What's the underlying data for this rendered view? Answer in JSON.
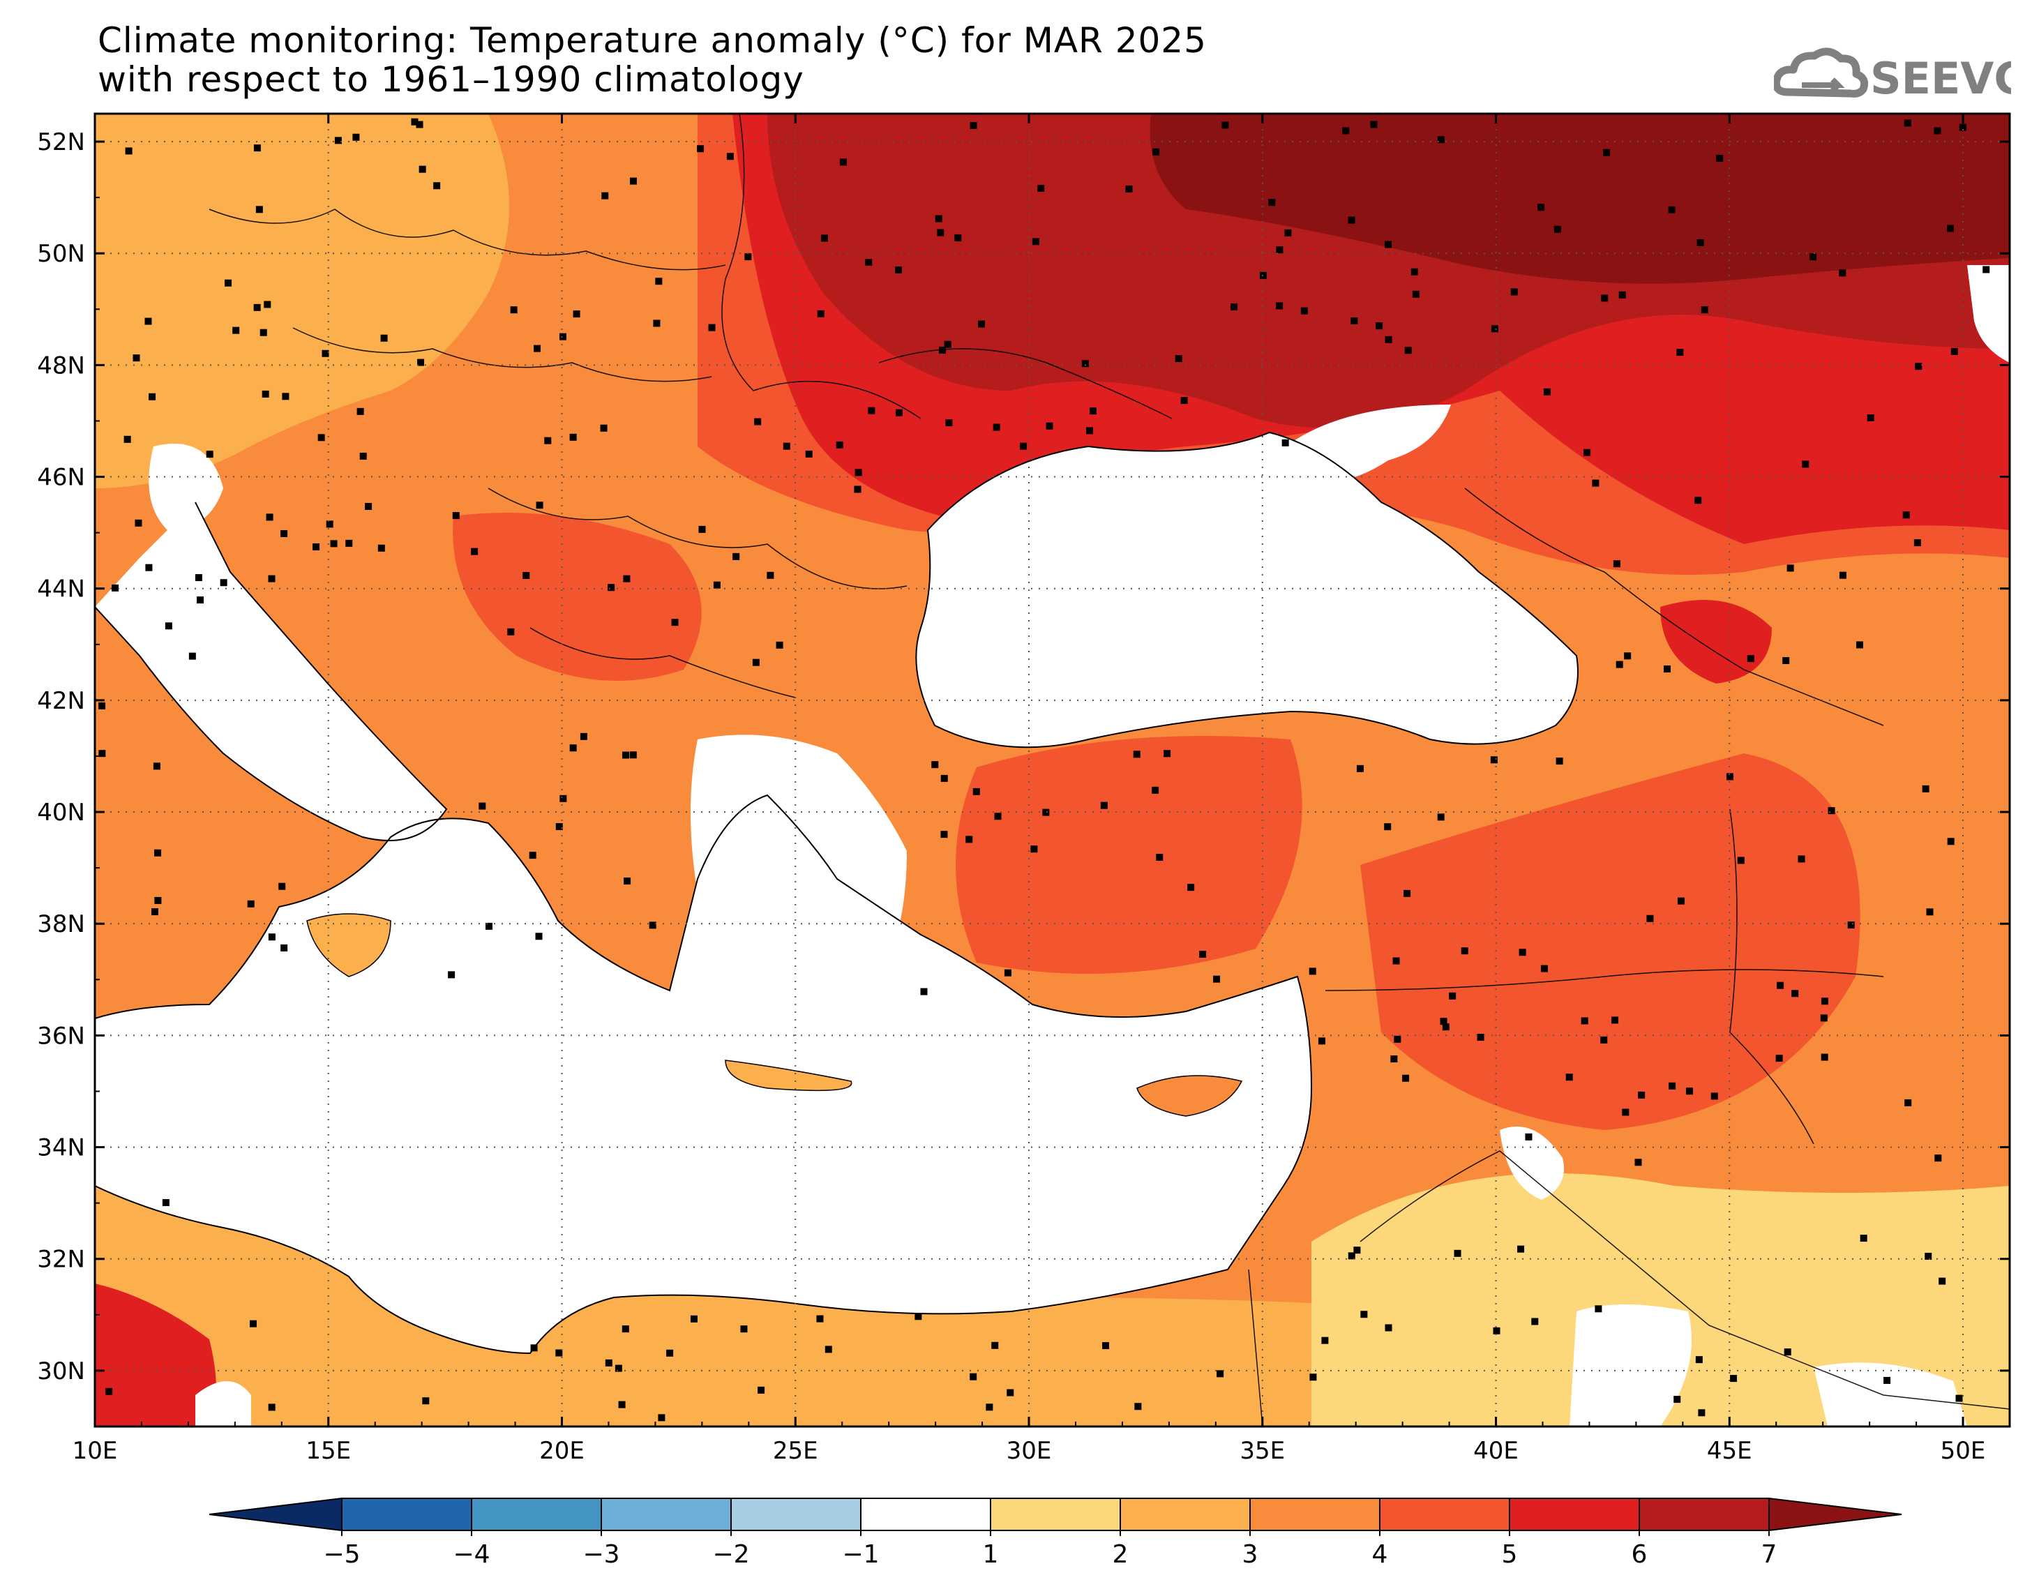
{
  "header": {
    "title_line1": "Climate monitoring: Temperature anomaly (°C) for MAR 2025",
    "title_line2": "with respect to 1961–1990 climatology"
  },
  "logo": {
    "text": "SEEVCCC",
    "icon": "cloud-icon",
    "color": "#808080"
  },
  "map": {
    "lon_range": [
      10,
      51
    ],
    "lat_range": [
      29,
      52.5
    ],
    "lon_ticks": [
      10,
      15,
      20,
      25,
      30,
      35,
      40,
      45,
      50
    ],
    "lon_tick_labels": [
      "10E",
      "15E",
      "20E",
      "25E",
      "30E",
      "35E",
      "40E",
      "45E",
      "50E"
    ],
    "lat_ticks": [
      30,
      32,
      34,
      36,
      38,
      40,
      42,
      44,
      46,
      48,
      50,
      52
    ],
    "lat_tick_labels": [
      "30N",
      "32N",
      "34N",
      "36N",
      "38N",
      "40N",
      "42N",
      "44N",
      "46N",
      "48N",
      "50N",
      "52N"
    ],
    "grid": "dotted",
    "stations_marker": "black-square"
  },
  "colorbar": {
    "boundaries": [
      -5,
      -4,
      -3,
      -2,
      -1,
      1,
      2,
      3,
      4,
      5,
      6,
      7
    ],
    "labels": [
      "−5",
      "−4",
      "−3",
      "−2",
      "−1",
      "1",
      "2",
      "3",
      "4",
      "5",
      "6",
      "7"
    ],
    "colors": [
      "#0a2a64",
      "#2166ac",
      "#4393c3",
      "#6baed6",
      "#a6cde3",
      "#ffffff",
      "#fdd87a",
      "#fbb04d",
      "#f98c3c",
      "#f3552e",
      "#e02020",
      "#b51c1c",
      "#8b1212"
    ]
  }
}
